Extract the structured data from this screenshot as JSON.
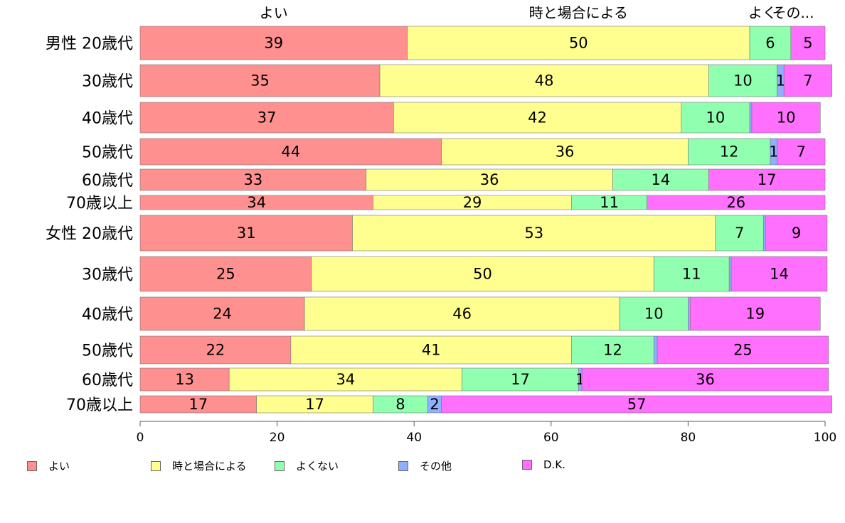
{
  "chart_data": {
    "type": "bar",
    "orientation": "horizontal",
    "stacked": true,
    "groups": [
      "男性",
      "女性"
    ],
    "categories": [
      "男性 20歳代",
      "30歳代",
      "40歳代",
      "50歳代",
      "60歳代",
      "70歳以上",
      "女性 20歳代",
      "30歳代",
      "40歳代",
      "50歳代",
      "60歳代",
      "70歳以上"
    ],
    "series": [
      {
        "name": "よい",
        "color": "#ff9090",
        "values": [
          39,
          35,
          37,
          44,
          33,
          34,
          31,
          25,
          24,
          22,
          13,
          17
        ]
      },
      {
        "name": "時と場合による",
        "color": "#ffff90",
        "values": [
          50,
          48,
          42,
          36,
          36,
          29,
          53,
          50,
          46,
          41,
          34,
          17
        ]
      },
      {
        "name": "よくない",
        "color": "#90ffb0",
        "values": [
          6,
          10,
          10,
          12,
          14,
          11,
          7,
          11,
          10,
          12,
          17,
          8
        ]
      },
      {
        "name": "その他",
        "color": "#90b0ff",
        "values": [
          0,
          1,
          0.3,
          1,
          0,
          0,
          0.3,
          0.3,
          0.3,
          0.5,
          0.5,
          2
        ]
      },
      {
        "name": "D.K.",
        "color": "#ff70ff",
        "values": [
          5,
          7,
          10,
          7,
          17,
          26,
          9,
          14,
          19,
          25,
          36,
          57
        ]
      }
    ],
    "data_labels": [
      [
        "39",
        "50",
        "6",
        "",
        "5"
      ],
      [
        "35",
        "48",
        "10",
        "1",
        "7"
      ],
      [
        "37",
        "42",
        "10",
        "",
        "10"
      ],
      [
        "44",
        "36",
        "12",
        "1",
        "7"
      ],
      [
        "33",
        "36",
        "14",
        "",
        "17"
      ],
      [
        "34",
        "29",
        "11",
        "",
        "26"
      ],
      [
        "31",
        "53",
        "7",
        "",
        "9"
      ],
      [
        "25",
        "50",
        "11",
        "",
        "14"
      ],
      [
        "24",
        "46",
        "10",
        "",
        "19"
      ],
      [
        "22",
        "41",
        "12",
        "",
        "25"
      ],
      [
        "13",
        "34",
        "17",
        "1",
        "36"
      ],
      [
        "17",
        "17",
        "8",
        "2",
        "57"
      ]
    ],
    "top_labels": [
      "よい",
      "時と場合による",
      "よくない",
      "その他"
    ],
    "top_label_texts": [
      "よい",
      "時と場合による",
      "よく",
      "その..."
    ],
    "xlim": [
      0,
      100
    ],
    "xticks": [
      0,
      20,
      40,
      60,
      80,
      100
    ],
    "legend": {
      "placement": "bottom",
      "entries": [
        "よい",
        "時と場合による",
        "よくない",
        "その他",
        "D.K."
      ]
    }
  }
}
